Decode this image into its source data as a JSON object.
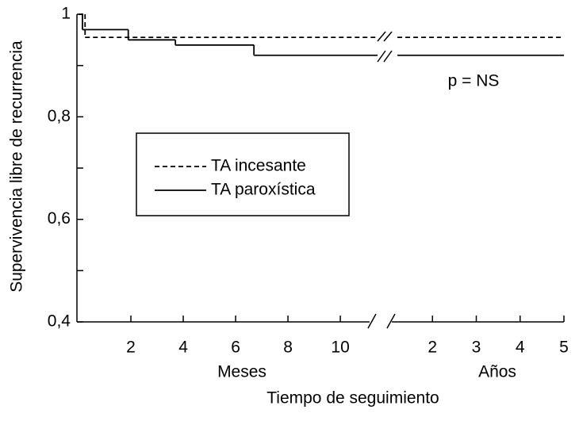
{
  "chart_data": {
    "type": "line",
    "step": true,
    "ylabel": "Supervivencia libre de recurrencia",
    "xlabel": "Tiempo de seguimiento",
    "annotation": "p = NS",
    "ylim": [
      0.4,
      1
    ],
    "yticks": [
      {
        "value": 0.4,
        "label": "0,4"
      },
      {
        "value": 0.6,
        "label": "0,6"
      },
      {
        "value": 0.8,
        "label": "0,8"
      },
      1
    ],
    "yminorticks": [
      0.5,
      0.7,
      0.9
    ],
    "panels": [
      {
        "label": "Meses",
        "xlim": [
          0,
          11.3
        ],
        "xticks": [
          2,
          4,
          6,
          8,
          10
        ]
      },
      {
        "label": "Años",
        "xlim": [
          1,
          5
        ],
        "xticks": [
          2,
          3,
          4,
          5
        ]
      }
    ],
    "series": [
      {
        "name": "TA incesante",
        "color": "#000000",
        "dashed": true,
        "panels": [
          {
            "x": [
              0,
              0.25
            ],
            "values": [
              1,
              0.955
            ]
          },
          {
            "x": [
              1.2
            ],
            "values": [
              0.955
            ]
          }
        ]
      },
      {
        "name": "TA paroxística",
        "color": "#000000",
        "dashed": false,
        "panels": [
          {
            "x": [
              0,
              0.15,
              1.9,
              3.7,
              6.7
            ],
            "values": [
              1,
              0.97,
              0.95,
              0.94,
              0.92
            ]
          },
          {
            "x": [
              1.2
            ],
            "values": [
              0.92
            ]
          }
        ]
      }
    ]
  }
}
